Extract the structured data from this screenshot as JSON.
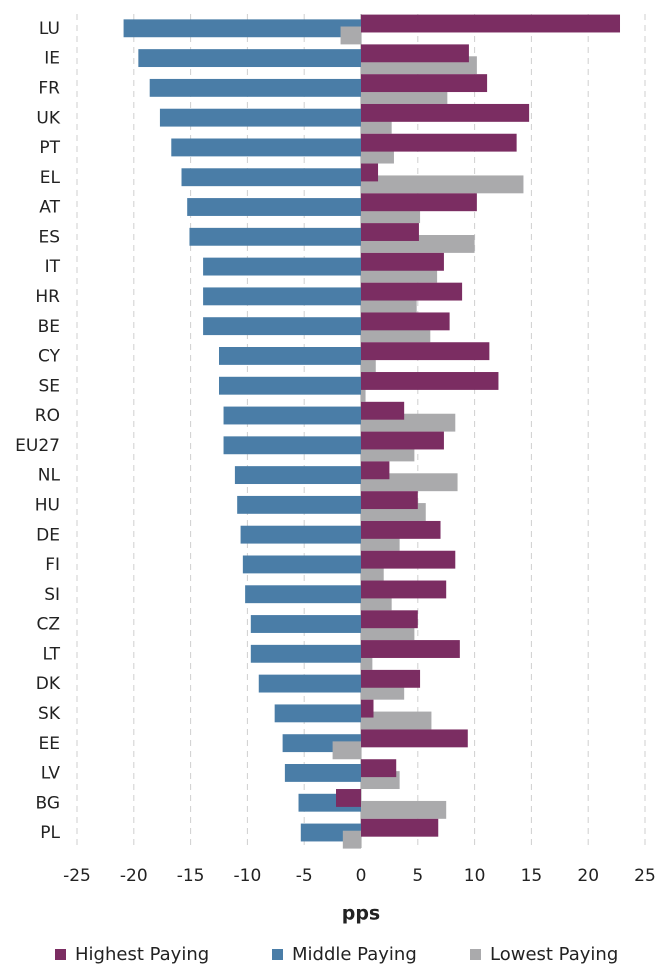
{
  "chart_data": {
    "type": "hbar",
    "xlabel": "pps",
    "categories": [
      "LU",
      "IE",
      "FR",
      "UK",
      "PT",
      "EL",
      "AT",
      "ES",
      "IT",
      "HR",
      "BE",
      "CY",
      "SE",
      "RO",
      "EU27",
      "NL",
      "HU",
      "DE",
      "FI",
      "SI",
      "CZ",
      "LT",
      "DK",
      "SK",
      "EE",
      "LV",
      "BG",
      "PL"
    ],
    "series": [
      {
        "name": "Highest Paying",
        "color": "#7b2d62",
        "values": [
          22.8,
          9.5,
          11.1,
          14.8,
          13.7,
          1.5,
          10.2,
          5.1,
          7.3,
          8.9,
          7.8,
          11.3,
          12.1,
          3.8,
          7.3,
          2.5,
          5.0,
          7.0,
          8.3,
          7.5,
          5.0,
          8.7,
          5.2,
          1.1,
          9.4,
          3.1,
          -2.2,
          6.8
        ]
      },
      {
        "name": "Middle Paying",
        "color": "#4a7da7",
        "values": [
          -20.9,
          -19.6,
          -18.6,
          -17.7,
          -16.7,
          -15.8,
          -15.3,
          -15.1,
          -13.9,
          -13.9,
          -13.9,
          -12.5,
          -12.5,
          -12.1,
          -12.1,
          -11.1,
          -10.9,
          -10.6,
          -10.4,
          -10.2,
          -9.7,
          -9.7,
          -9.0,
          -7.6,
          -6.9,
          -6.7,
          -5.5,
          -5.3
        ]
      },
      {
        "name": "Lowest Paying",
        "color": "#aaaaac",
        "values": [
          -1.8,
          10.2,
          7.6,
          2.7,
          2.9,
          14.3,
          5.2,
          10.0,
          6.7,
          4.9,
          6.1,
          1.3,
          0.4,
          8.3,
          4.7,
          8.5,
          5.7,
          3.4,
          2.0,
          2.7,
          4.7,
          1.0,
          3.8,
          6.2,
          -2.5,
          3.4,
          7.5,
          -1.6
        ]
      }
    ],
    "xlim": [
      -25,
      25
    ],
    "xticks": [
      -25,
      -20,
      -15,
      -10,
      -5,
      0,
      5,
      10,
      15,
      20,
      25
    ],
    "grid": true
  }
}
